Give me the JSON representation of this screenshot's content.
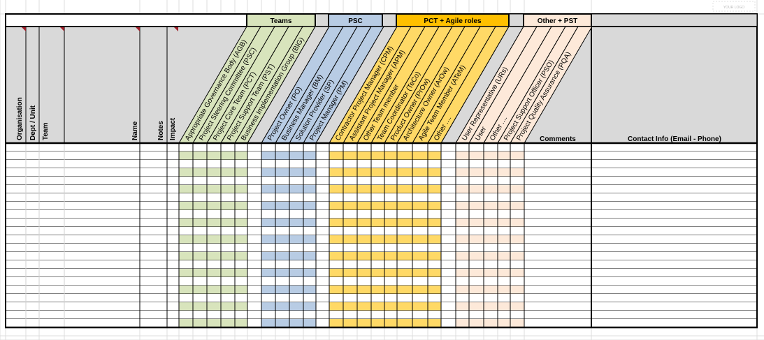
{
  "logo": {
    "text": "YOUR LOGO"
  },
  "groups": [
    {
      "label": "Teams",
      "color": "#d8e4bc"
    },
    {
      "label": "PSC",
      "color": "#b8cce4"
    },
    {
      "label": "PCT + Agile roles",
      "color": "#ffc000"
    },
    {
      "label": "Other + PST",
      "color": "#fde9d9"
    }
  ],
  "band_colors": {
    "teams": "#d8e4bc",
    "psc": "#b8cce4",
    "pct": "#ffd966",
    "other": "#fde9d9",
    "gray": "#d9d9d9"
  },
  "left_headers": [
    "Organisation",
    "Dept / Unit",
    "Team",
    "Name",
    "Notes",
    "Impact"
  ],
  "role_headers": [
    "Appropriate Governance Body (AGB)",
    "Project Steering Committee (PSC)",
    "Project Core Team (PCT)",
    "Project Support Team (PST)",
    "Business Implementation Group (BIG)",
    "",
    "Project Owner (PO)",
    "Business Manager (BM)",
    "Solution Provider (SP)",
    "Project Manager (PM)",
    "",
    "Contractor Project Manager (CPM)",
    "Assistant Project Manager (APM)",
    "Other Team member",
    "Team Coordinator (TeCo)",
    "Product Owner (PrOw)",
    "Architecture Owner (ArOw)",
    "Agile Team Member (ATeM)",
    "Other ....",
    "",
    "User Representative (URs)",
    "User",
    "Other ....",
    "Project Support Officer (PSO)",
    "Project Quality Assurance (PQA)"
  ],
  "right_headers": {
    "comments": "Comments",
    "contact": "Contact Info (Email - Phone)"
  }
}
